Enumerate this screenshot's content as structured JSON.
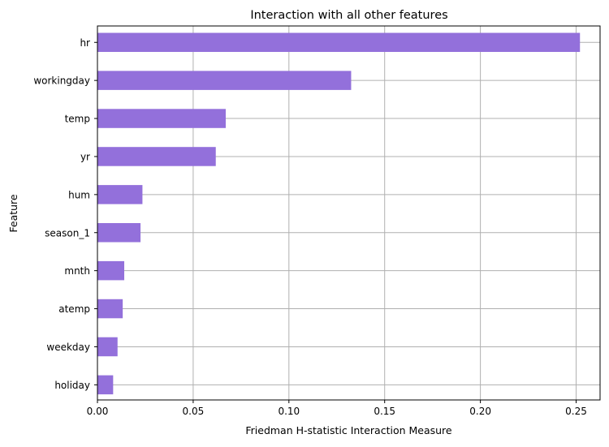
{
  "chart_data": {
    "type": "bar",
    "orientation": "horizontal",
    "title": "Interaction with all other features",
    "xlabel": "Friedman H-statistic Interaction Measure",
    "ylabel": "Feature",
    "categories": [
      "hr",
      "workingday",
      "temp",
      "yr",
      "hum",
      "season_1",
      "mnth",
      "atemp",
      "weekday",
      "holiday"
    ],
    "values": [
      0.252,
      0.1325,
      0.067,
      0.0618,
      0.0235,
      0.0225,
      0.014,
      0.0132,
      0.0105,
      0.0082
    ],
    "xlim": [
      0.0,
      0.2625
    ],
    "xticks": [
      0.0,
      0.05,
      0.1,
      0.15,
      0.2,
      0.25
    ],
    "xtick_labels": [
      "0.00",
      "0.05",
      "0.10",
      "0.15",
      "0.20",
      "0.25"
    ],
    "grid": true,
    "bar_color": "#9370DB",
    "grid_color": "#b0b0b0"
  }
}
